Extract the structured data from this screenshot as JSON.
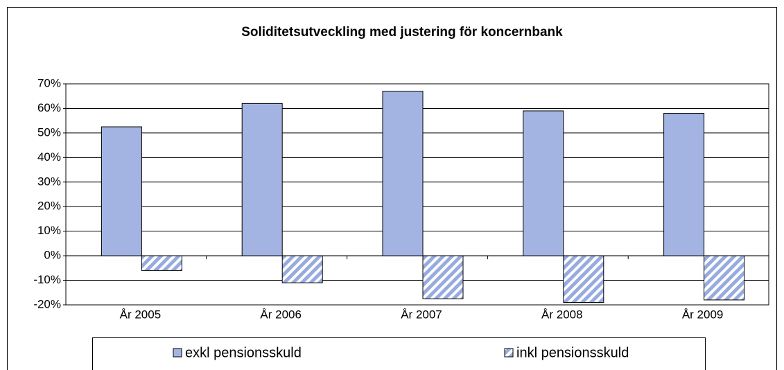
{
  "chart_data": {
    "type": "bar",
    "title": "Soliditetsutveckling med justering för koncernbank",
    "categories": [
      "År 2005",
      "År 2006",
      "År 2007",
      "År 2008",
      "År 2009"
    ],
    "series": [
      {
        "name": "exkl pensionsskuld",
        "color": "#a4b4e2",
        "values": [
          52.5,
          62,
          67,
          59,
          58
        ]
      },
      {
        "name": "inkl pensionsskuld",
        "color": "#97abe0",
        "pattern": "diagonal",
        "values": [
          -6,
          -11,
          -17.5,
          -19,
          -18
        ]
      }
    ],
    "ylim": [
      -20,
      70
    ],
    "yticks": [
      {
        "value": -20,
        "label": "-20%"
      },
      {
        "value": -10,
        "label": "-10%"
      },
      {
        "value": 0,
        "label": "0%"
      },
      {
        "value": 10,
        "label": "10%"
      },
      {
        "value": 20,
        "label": "20%"
      },
      {
        "value": 30,
        "label": "30%"
      },
      {
        "value": 40,
        "label": "40%"
      },
      {
        "value": 50,
        "label": "50%"
      },
      {
        "value": 60,
        "label": "60%"
      },
      {
        "value": 70,
        "label": "70%"
      }
    ],
    "grid": true,
    "legend": "bottom"
  }
}
